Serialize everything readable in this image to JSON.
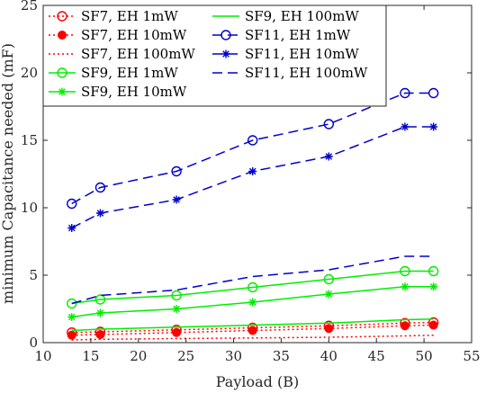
{
  "chart_data": {
    "type": "line",
    "xlabel": "Payload (B)",
    "ylabel": "minimum Capacitance needed (mF)",
    "xlim": [
      10,
      55
    ],
    "ylim": [
      0,
      25
    ],
    "xticks": [
      "10",
      "15",
      "20",
      "25",
      "30",
      "35",
      "40",
      "45",
      "50",
      "55"
    ],
    "yticks": [
      "0",
      "5",
      "10",
      "15",
      "20",
      "25"
    ],
    "grid": false,
    "legend_position": "top, two columns",
    "x": [
      13,
      16,
      24,
      32,
      40,
      48,
      51
    ],
    "series": [
      {
        "name": "SF7, EH 1mW",
        "color": "#ff0000",
        "linestyle": "dotted",
        "marker": "circle",
        "values": [
          0.75,
          0.8,
          0.95,
          1.1,
          1.25,
          1.45,
          1.5
        ]
      },
      {
        "name": "SF7, EH 10mW",
        "color": "#ff0000",
        "linestyle": "dotted",
        "marker": "filled-circle",
        "values": [
          0.55,
          0.6,
          0.75,
          0.9,
          1.05,
          1.25,
          1.3
        ]
      },
      {
        "name": "SF7, EH 100mW",
        "color": "#ff0000",
        "linestyle": "dotted",
        "marker": "none",
        "values": [
          0.2,
          0.25,
          0.3,
          0.35,
          0.4,
          0.5,
          0.55
        ]
      },
      {
        "name": "SF9, EH 1mW",
        "color": "#00ee00",
        "linestyle": "solid",
        "marker": "circle",
        "values": [
          2.9,
          3.2,
          3.5,
          4.1,
          4.7,
          5.3,
          5.3
        ]
      },
      {
        "name": "SF9, EH 10mW",
        "color": "#00ee00",
        "linestyle": "solid",
        "marker": "asterisk",
        "values": [
          1.9,
          2.2,
          2.5,
          3.0,
          3.6,
          4.15,
          4.15
        ]
      },
      {
        "name": "SF9, EH 100mW",
        "color": "#00ee00",
        "linestyle": "solid",
        "marker": "none",
        "values": [
          0.9,
          1.0,
          1.15,
          1.3,
          1.45,
          1.7,
          1.75
        ]
      },
      {
        "name": "SF11, EH 1mW",
        "color": "#0000cc",
        "linestyle": "dashed",
        "marker": "circle",
        "values": [
          10.3,
          11.5,
          12.7,
          15.0,
          16.2,
          18.5,
          18.5
        ]
      },
      {
        "name": "SF11, EH 10mW",
        "color": "#0000cc",
        "linestyle": "dashed",
        "marker": "asterisk",
        "values": [
          8.5,
          9.6,
          10.6,
          12.7,
          13.8,
          16.0,
          16.0
        ]
      },
      {
        "name": "SF11, EH 100mW",
        "color": "#0000cc",
        "linestyle": "dashed",
        "marker": "none",
        "values": [
          2.9,
          3.5,
          3.9,
          4.9,
          5.4,
          6.4,
          6.4
        ]
      }
    ]
  }
}
